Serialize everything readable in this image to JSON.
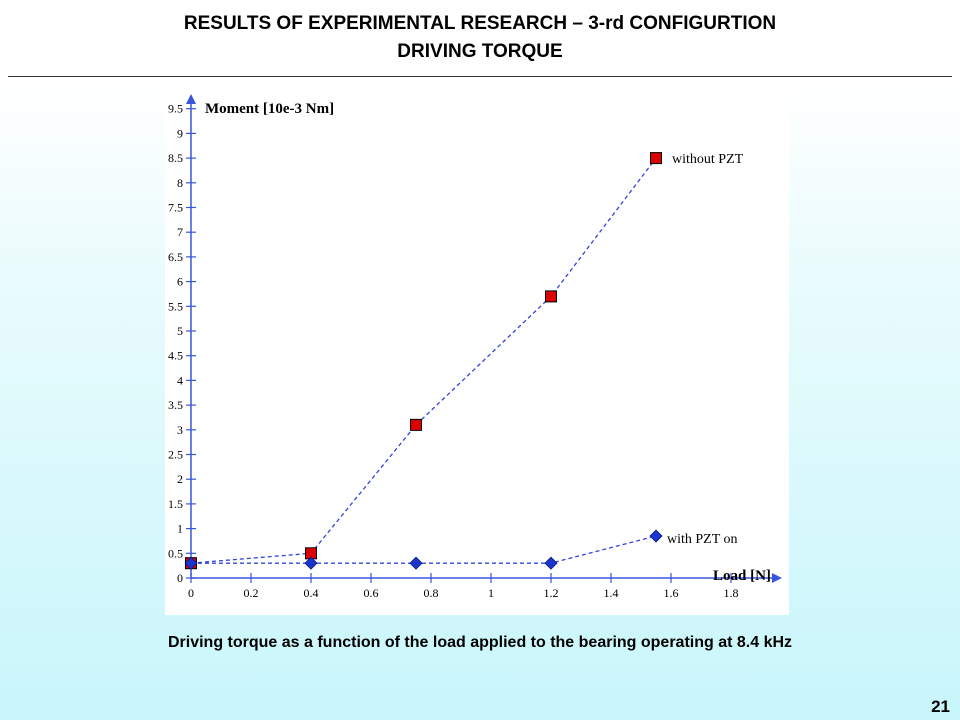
{
  "slide": {
    "title_line1": "RESULTS OF EXPERIMENTAL RESEARCH – 3-rd CONFIGURTION",
    "title_line2": "DRIVING TORQUE",
    "caption": "Driving torque as a function of the load applied to the bearing operating at 8.4 kHz",
    "page_number": "21"
  },
  "chart_data": {
    "type": "line",
    "title": "",
    "xlabel": "Load [N]",
    "ylabel": "Moment [10e-3 Nm]",
    "xlim": [
      0,
      1.95
    ],
    "ylim": [
      0,
      10
    ],
    "x_ticks": [
      "0",
      "0.2",
      "0.4",
      "0.6",
      "0.8",
      "1",
      "1.2",
      "1.4",
      "1.6",
      "1.8"
    ],
    "y_ticks": [
      "0",
      "0.5",
      "1",
      "1.5",
      "2",
      "2.5",
      "3",
      "3.5",
      "4",
      "4.5",
      "5",
      "5.5",
      "6",
      "6.5",
      "7",
      "7.5",
      "8",
      "8.5",
      "9",
      "9.5"
    ],
    "grid": false,
    "legend": "none (series labelled inline)",
    "series": [
      {
        "name": "without PZT",
        "marker": "square",
        "color": "#dd0000",
        "line_color": "#3344dd",
        "line_style": "dashed",
        "points": [
          {
            "x": 0,
            "y": 0.3
          },
          {
            "x": 0.4,
            "y": 0.5
          },
          {
            "x": 0.75,
            "y": 3.1
          },
          {
            "x": 1.2,
            "y": 5.7
          },
          {
            "x": 1.55,
            "y": 8.5
          }
        ]
      },
      {
        "name": "with PZT on",
        "marker": "diamond",
        "color": "#1a35cc",
        "line_color": "#3344dd",
        "line_style": "dashed",
        "points": [
          {
            "x": 0,
            "y": 0.3
          },
          {
            "x": 0.4,
            "y": 0.3
          },
          {
            "x": 0.75,
            "y": 0.3
          },
          {
            "x": 1.2,
            "y": 0.3
          },
          {
            "x": 1.55,
            "y": 0.85
          }
        ]
      }
    ]
  }
}
